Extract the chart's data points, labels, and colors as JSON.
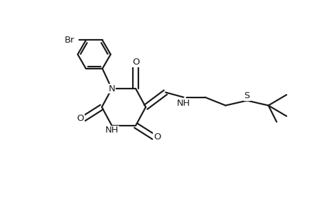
{
  "bg_color": "#ffffff",
  "line_color": "#1a1a1a",
  "line_width": 1.6,
  "font_size": 9.5,
  "xlim": [
    -1.3,
    2.5
  ],
  "ylim": [
    -0.75,
    1.05
  ]
}
